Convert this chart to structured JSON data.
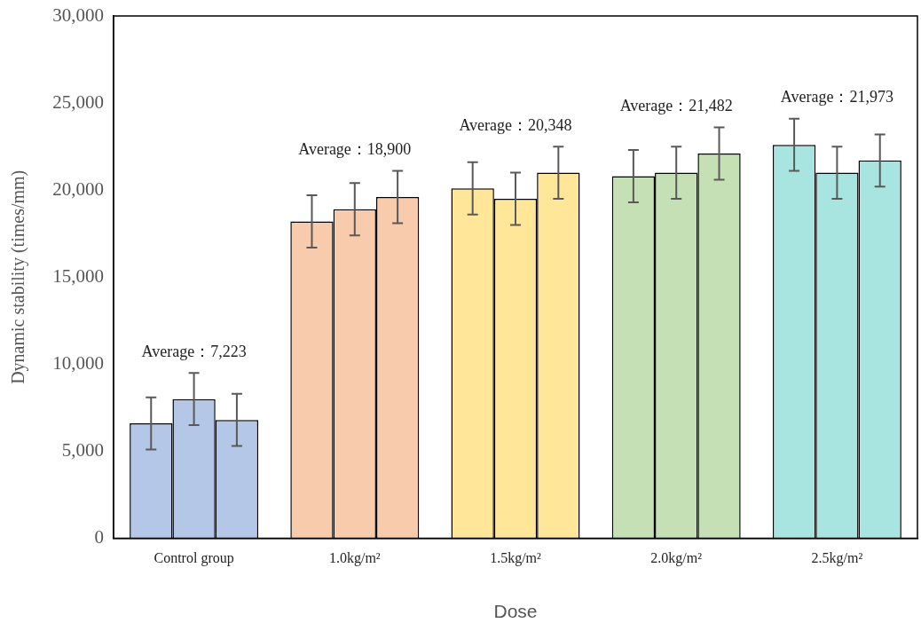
{
  "chart_data": {
    "type": "bar",
    "categories": [
      "Control group",
      "1.0kg/m²",
      "1.5kg/m²",
      "2.0kg/m²",
      "2.5kg/m²"
    ],
    "series": [
      {
        "colors": [
          "#b4c7e7",
          "#f8cbad",
          "#ffe699",
          "#c5e0b4",
          "#a9e5e0"
        ],
        "values": [
          6600,
          18200,
          20100,
          20800,
          22600
        ],
        "errors": [
          1500,
          1500,
          1500,
          1500,
          1500
        ]
      },
      {
        "colors": [
          "#b4c7e7",
          "#f8cbad",
          "#ffe699",
          "#c5e0b4",
          "#a9e5e0"
        ],
        "values": [
          8000,
          18900,
          19500,
          21000,
          21000
        ],
        "errors": [
          1500,
          1500,
          1500,
          1500,
          1500
        ]
      },
      {
        "colors": [
          "#b4c7e7",
          "#f8cbad",
          "#ffe699",
          "#c5e0b4",
          "#a9e5e0"
        ],
        "values": [
          6800,
          19600,
          21000,
          22100,
          21700
        ],
        "errors": [
          1500,
          1500,
          1500,
          1500,
          1500
        ]
      }
    ],
    "xlabel": "Dose",
    "ylabel": "Dynamic stability (times/mm)",
    "ylim": [
      0,
      30000
    ],
    "yticks": [
      0,
      {
        "value": 5000,
        "label": "5,000"
      },
      {
        "value": 10000,
        "label": "10,000"
      },
      {
        "value": 15000,
        "label": "15,000"
      },
      {
        "value": 20000,
        "label": "20,000"
      },
      {
        "value": 25000,
        "label": "25,000"
      },
      {
        "value": 30000,
        "label": "30,000"
      }
    ],
    "grid": false,
    "legend": false,
    "annotations": [
      "Average：7,223",
      "Average：18,900",
      "Average：20,348",
      "Average：21,482",
      "Average：21,973"
    ]
  }
}
